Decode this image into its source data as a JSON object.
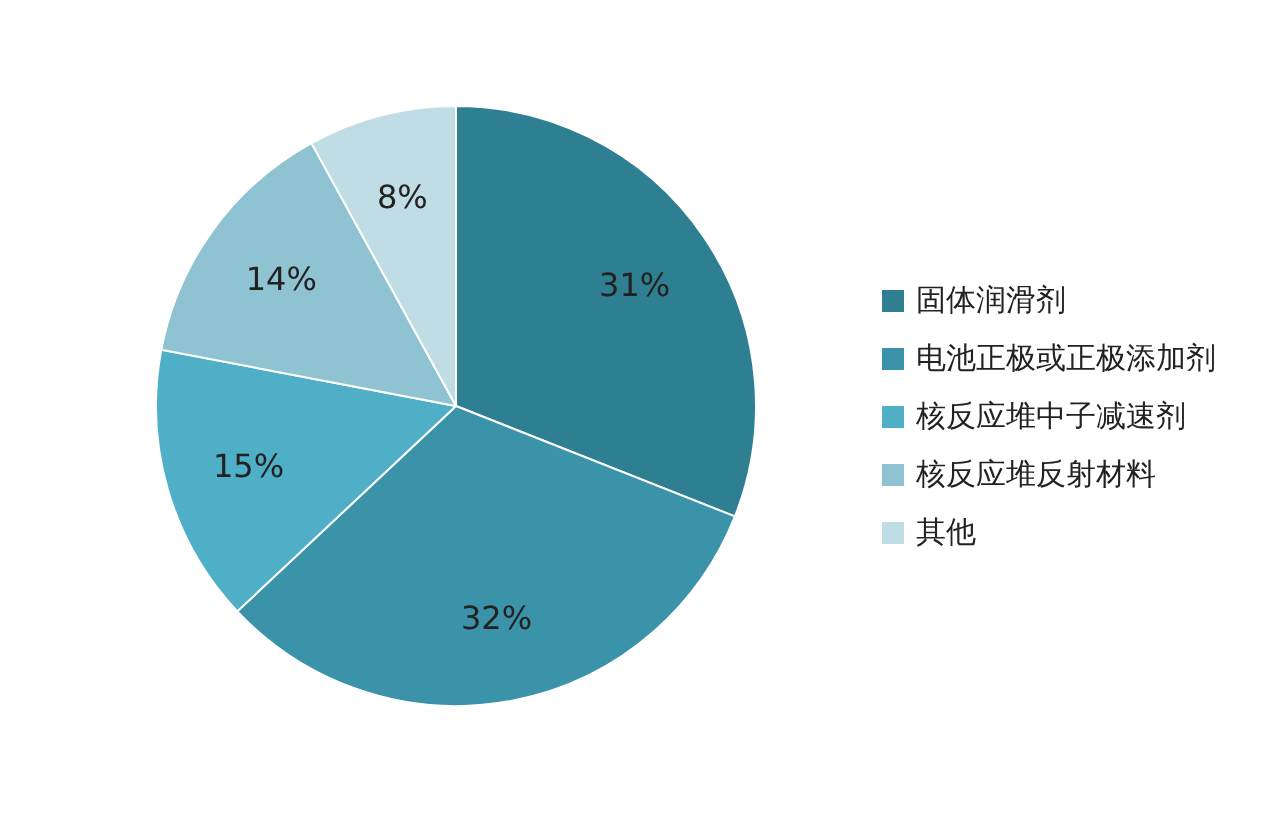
{
  "chart_data": {
    "type": "pie",
    "categories": [
      "固体润滑剂",
      "电池正极或正极添加剂",
      "核反应堆中子减速剂",
      "核反应堆反射材料",
      "其他"
    ],
    "values": [
      31,
      32,
      15,
      14,
      8
    ],
    "colors": [
      "#2f7f92",
      "#3b93a9",
      "#4eafc6",
      "#90c3d1",
      "#c0dce4"
    ],
    "value_labels": [
      "31%",
      "32%",
      "15%",
      "14%",
      "8%"
    ],
    "legend": "right"
  }
}
